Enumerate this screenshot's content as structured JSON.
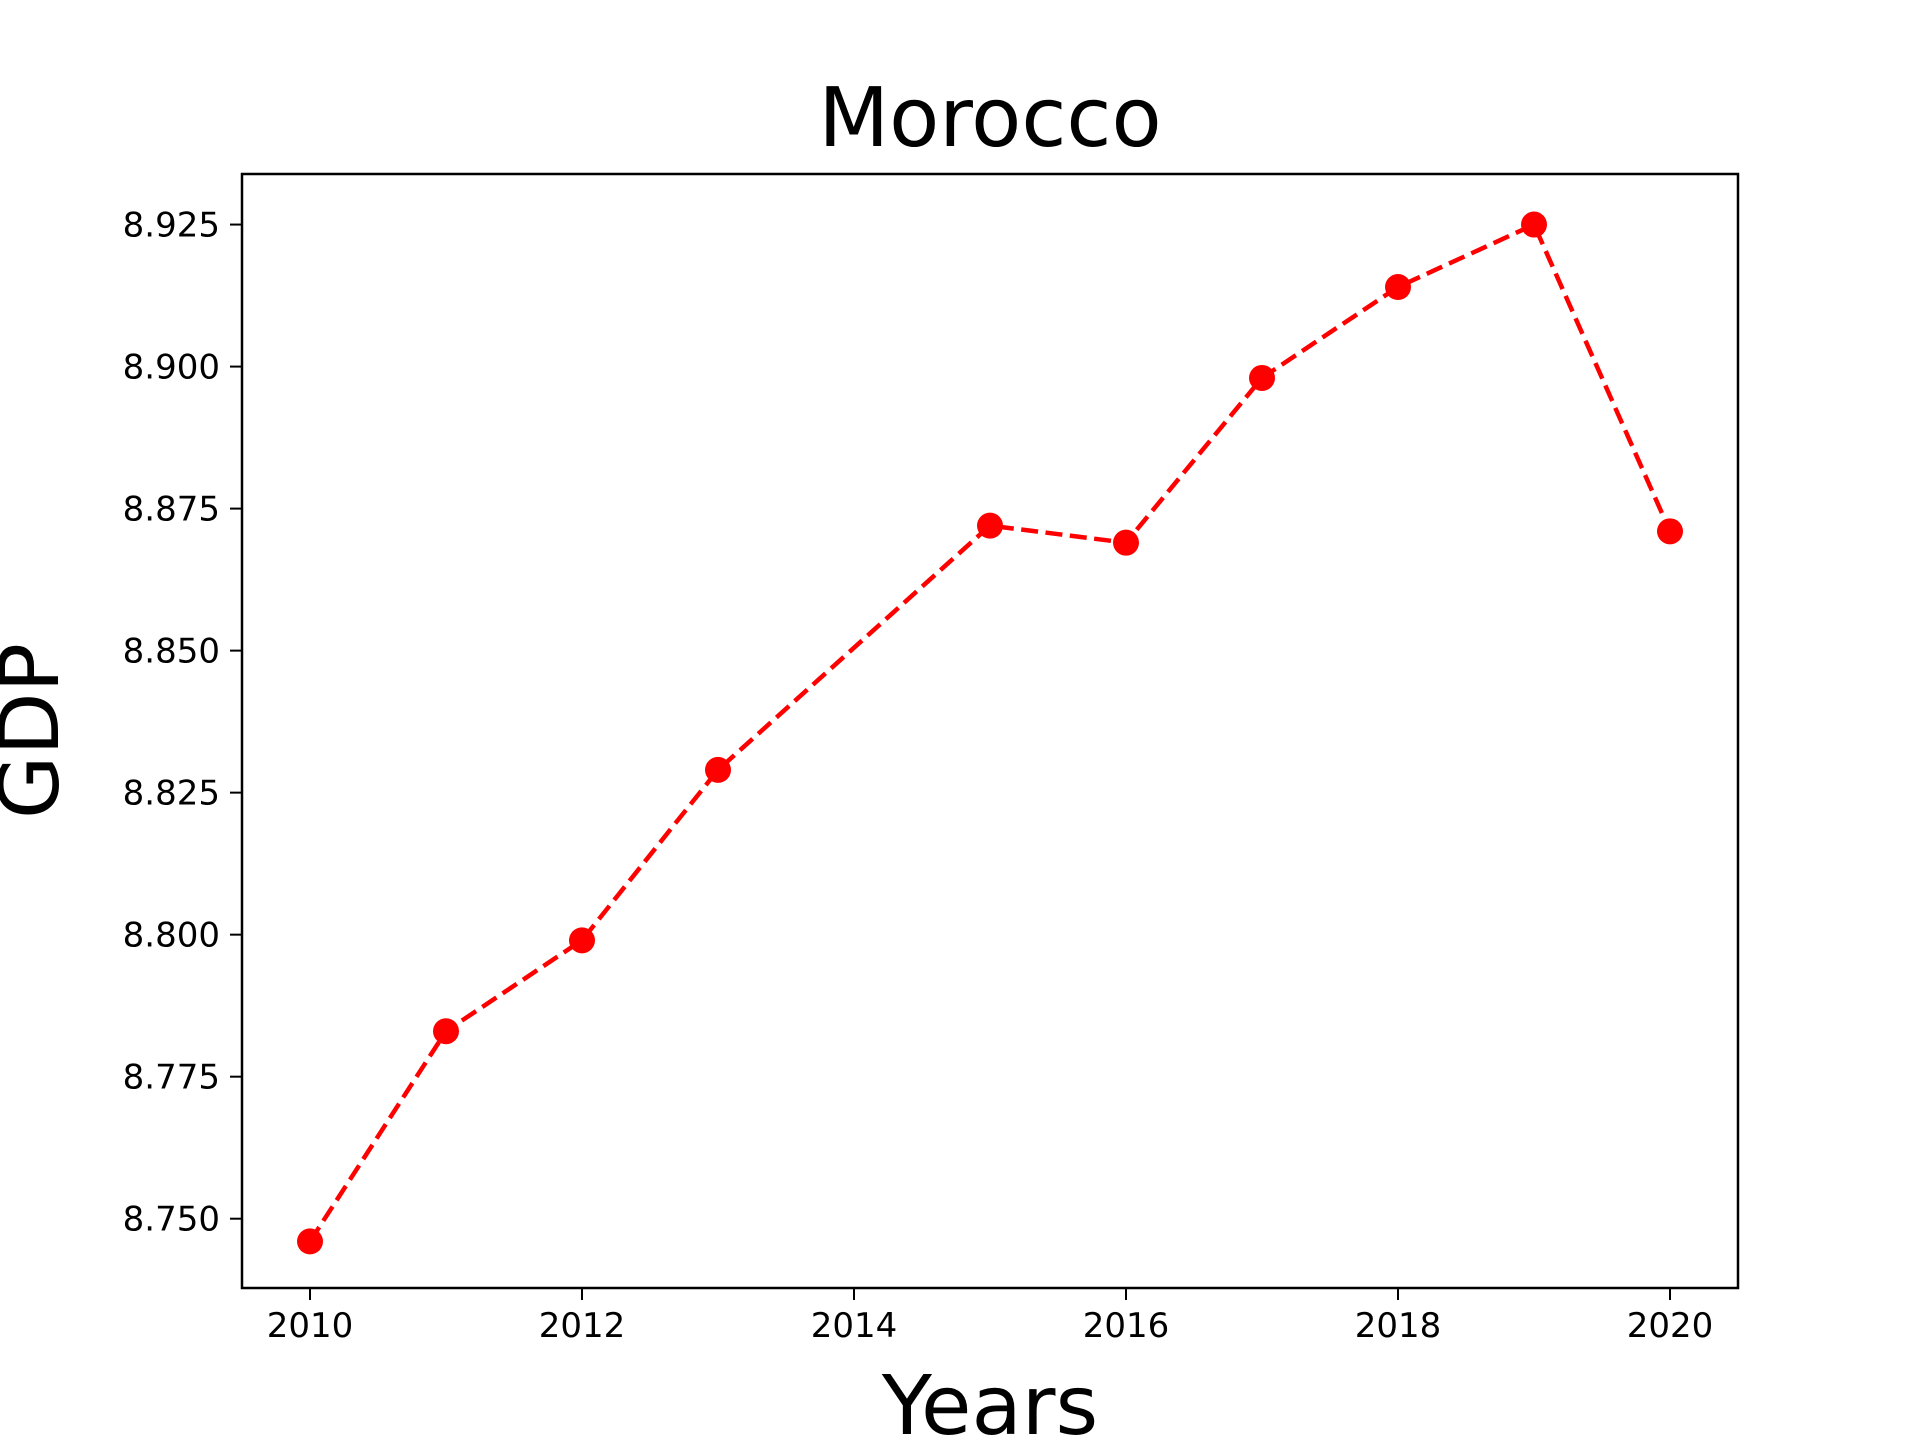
{
  "chart_data": {
    "type": "line",
    "title": "Morocco",
    "xlabel": "Years",
    "ylabel": "GDP",
    "x": [
      2010,
      2011,
      2012,
      2013,
      2015,
      2016,
      2017,
      2018,
      2019,
      2020
    ],
    "series": [
      {
        "values": [
          8.746,
          8.783,
          8.799,
          8.829,
          8.872,
          8.869,
          8.898,
          8.914,
          8.925,
          8.871
        ],
        "color": "#ff0000",
        "line_style": "dashed",
        "marker": "circle"
      }
    ],
    "xticks": [
      "2010",
      "2012",
      "2014",
      "2016",
      "2018",
      "2020"
    ],
    "yticks": [
      "8.750",
      "8.775",
      "8.800",
      "8.825",
      "8.850",
      "8.875",
      "8.900",
      "8.925"
    ],
    "xlim": [
      2009.5,
      2020.5
    ],
    "ylim": [
      8.7378,
      8.9339
    ],
    "grid": false,
    "legend": "none"
  }
}
